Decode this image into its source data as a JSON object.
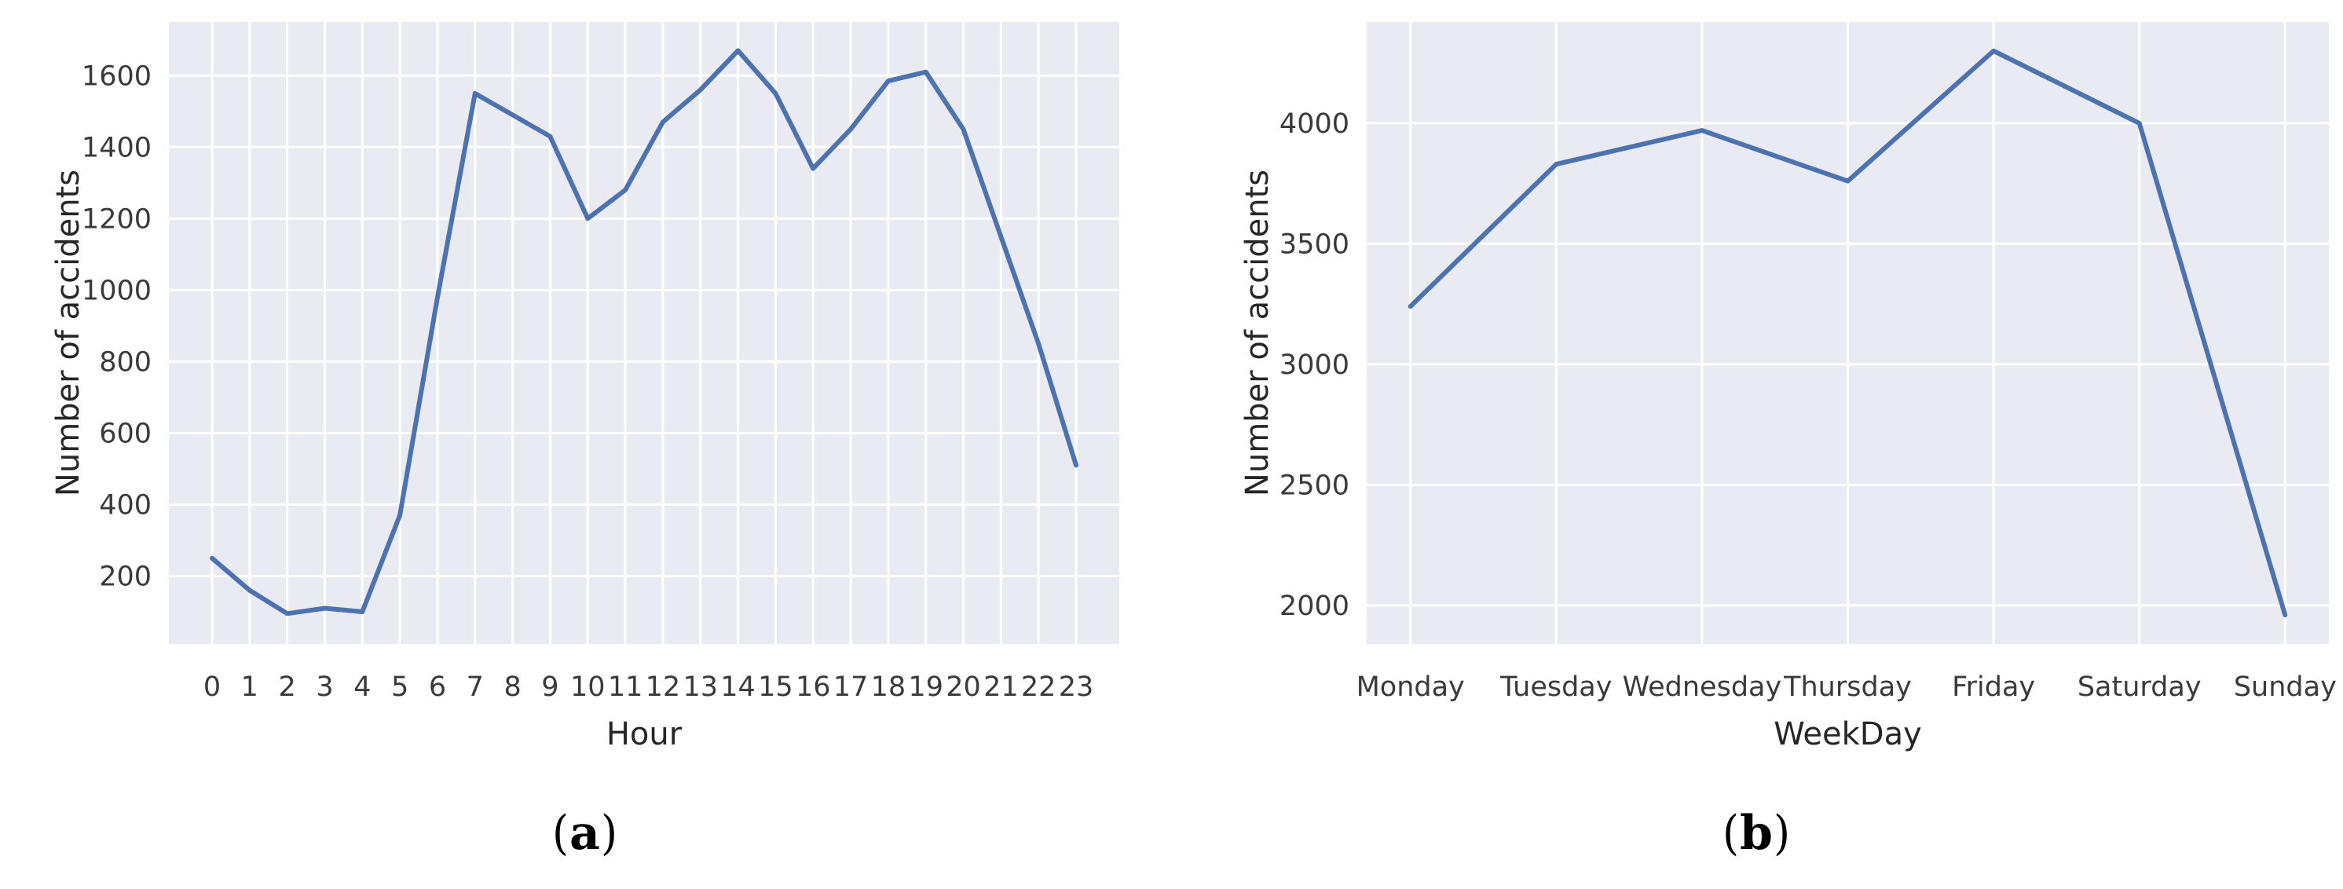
{
  "figure": {
    "panels": [
      "a",
      "b"
    ]
  },
  "captions": {
    "a": {
      "open": "(",
      "letter": "a",
      "close": ")"
    },
    "b": {
      "open": "(",
      "letter": "b",
      "close": ")"
    }
  },
  "colors": {
    "line": "#4C72B0",
    "plot_background": "#EAEAF2",
    "grid": "#FFFFFF",
    "tick_text": "#3a3a3a",
    "axis_label_text": "#262626",
    "page_background": "#FFFFFF"
  },
  "chart_data": [
    {
      "type": "line",
      "panel": "a",
      "title": "",
      "xlabel": "Hour",
      "ylabel": "Number of accidents",
      "x": [
        0,
        1,
        2,
        3,
        4,
        5,
        6,
        7,
        8,
        9,
        10,
        11,
        12,
        13,
        14,
        15,
        16,
        17,
        18,
        19,
        20,
        21,
        22,
        23
      ],
      "xtick_labels": [
        "0",
        "1",
        "2",
        "3",
        "4",
        "5",
        "6",
        "7",
        "8",
        "9",
        "10",
        "11",
        "12",
        "13",
        "14",
        "15",
        "16",
        "17",
        "18",
        "19",
        "20",
        "21",
        "22",
        "23"
      ],
      "series": [
        {
          "name": "accidents_by_hour",
          "values": [
            250,
            160,
            95,
            110,
            100,
            370,
            980,
            1550,
            1490,
            1430,
            1200,
            1280,
            1470,
            1560,
            1670,
            1550,
            1340,
            1450,
            1585,
            1610,
            1450,
            1150,
            850,
            510
          ]
        }
      ],
      "yticks": [
        200,
        400,
        600,
        800,
        1000,
        1200,
        1400,
        1600
      ],
      "xlim": [
        -1.15,
        24.15
      ],
      "ylim": [
        10,
        1750
      ],
      "grid": true,
      "legend": null
    },
    {
      "type": "line",
      "panel": "b",
      "title": "",
      "xlabel": "WeekDay",
      "ylabel": "Number of accidents",
      "categories": [
        "Monday",
        "Tuesday",
        "Wednesday",
        "Thursday",
        "Friday",
        "Saturday",
        "Sunday"
      ],
      "x": [
        0,
        1,
        2,
        3,
        4,
        5,
        6
      ],
      "xtick_labels": [
        "Monday",
        "Tuesday",
        "Wednesday",
        "Thursday",
        "Friday",
        "Saturday",
        "Sunday"
      ],
      "series": [
        {
          "name": "accidents_by_weekday",
          "values": [
            3240,
            3830,
            3970,
            3760,
            4300,
            4000,
            1960
          ]
        }
      ],
      "yticks": [
        2000,
        2500,
        3000,
        3500,
        4000
      ],
      "xlim": [
        -0.3,
        6.3
      ],
      "ylim": [
        1840,
        4420
      ],
      "grid": true,
      "legend": null
    }
  ]
}
